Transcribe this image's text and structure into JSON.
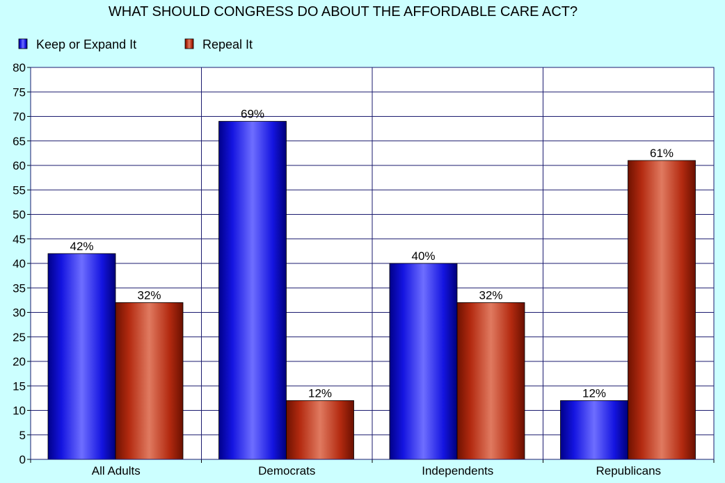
{
  "chart_data": {
    "type": "bar",
    "title": "WHAT SHOULD CONGRESS DO ABOUT THE AFFORDABLE CARE ACT?",
    "xlabel": "",
    "ylabel": "",
    "categories": [
      "All Adults",
      "Democrats",
      "Independents",
      "Republicans"
    ],
    "series": [
      {
        "name": "Keep or Expand It",
        "values": [
          42,
          69,
          40,
          12
        ],
        "labels": [
          "42%",
          "69%",
          "40%",
          "12%"
        ],
        "color": "#2323e6"
      },
      {
        "name": "Repeal It",
        "values": [
          32,
          12,
          32,
          61
        ],
        "labels": [
          "32%",
          "12%",
          "32%",
          "61%"
        ],
        "color": "#b02a10"
      }
    ],
    "ylim": [
      0,
      80
    ],
    "yticks": [
      "0",
      "5",
      "10",
      "15",
      "20",
      "25",
      "30",
      "35",
      "40",
      "45",
      "50",
      "55",
      "60",
      "65",
      "70",
      "75",
      "80"
    ],
    "grid": true,
    "legend_position": "top-left"
  },
  "colors": {
    "background": "#ccffff",
    "plot_background": "#ffffff",
    "grid": "#1a1a6e",
    "axis": "#000000"
  }
}
